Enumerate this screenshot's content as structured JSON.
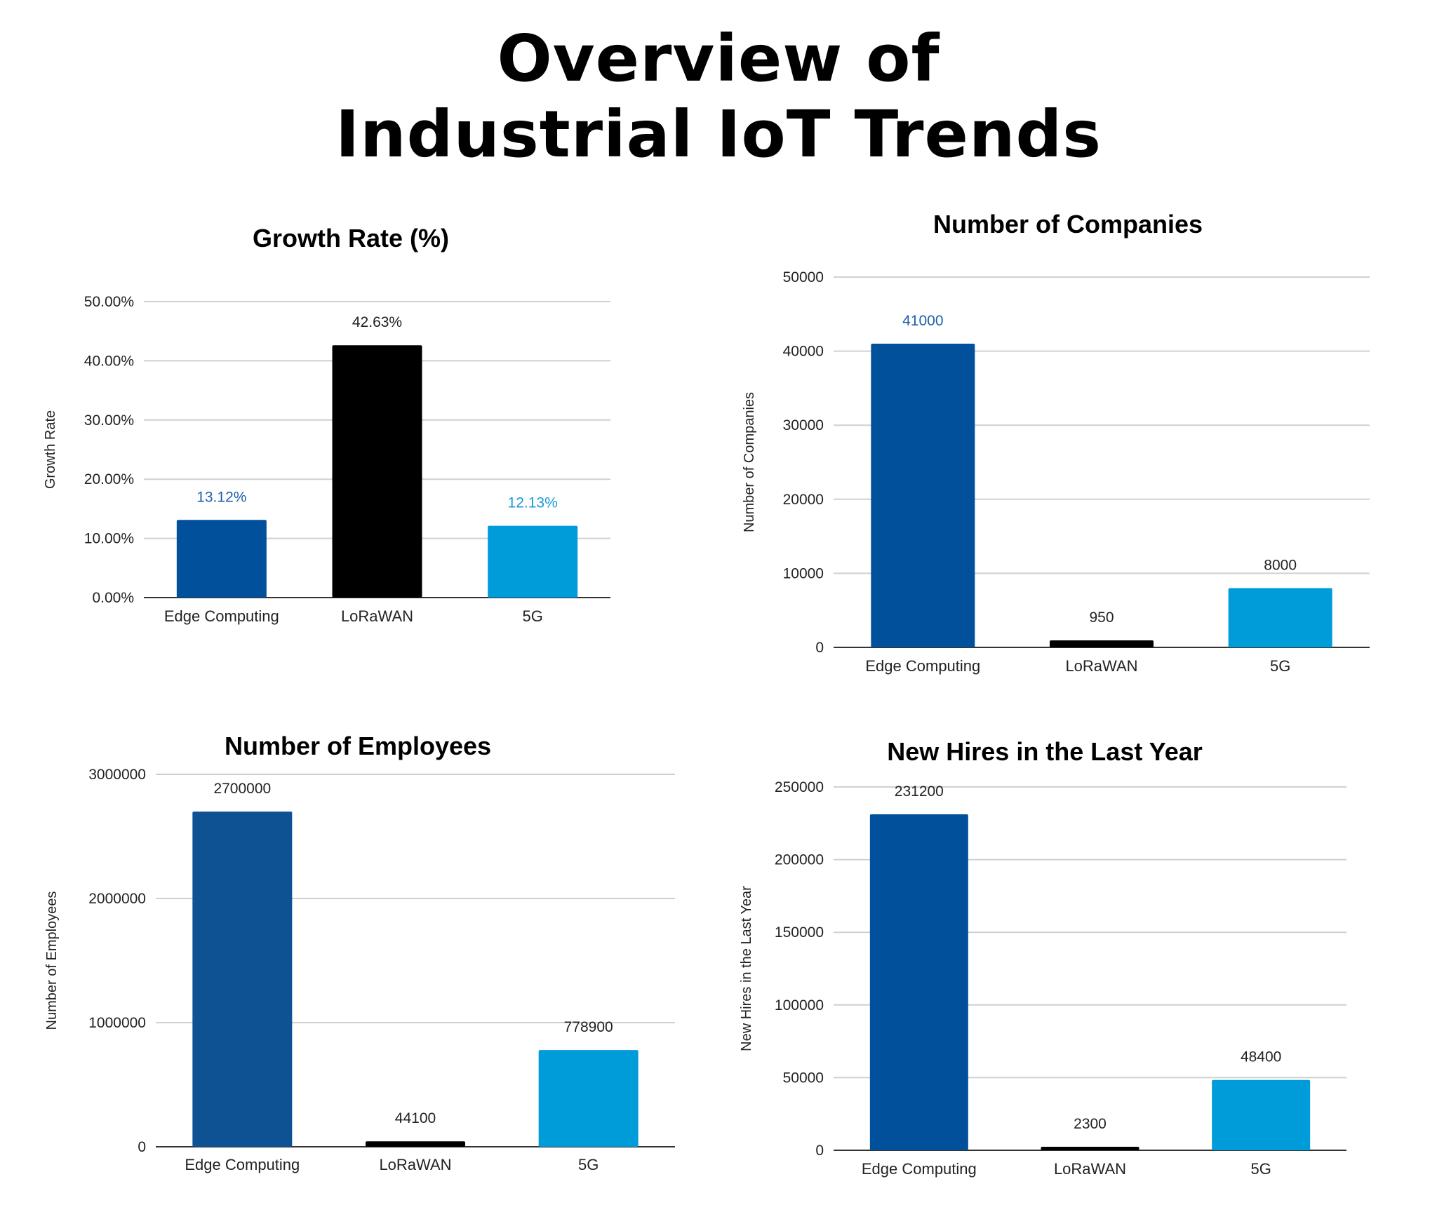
{
  "page": {
    "title_line1": "Overview of",
    "title_line2": "Industrial IoT Trends"
  },
  "colors": {
    "edge_computing": "#00509B",
    "lorawan": "#000000",
    "five_g": "#009CD9",
    "grid": "#D0D0D0",
    "axis": "#333333",
    "label_dark": "#222222"
  },
  "chart_data": [
    {
      "id": "growth",
      "type": "bar",
      "title": "Growth Rate (%)",
      "xlabel": "",
      "ylabel": "Growth Rate",
      "categories": [
        "Edge Computing",
        "LoRaWAN",
        "5G"
      ],
      "values": [
        13.12,
        42.63,
        12.13
      ],
      "data_labels": [
        "13.12%",
        "42.63%",
        "12.13%"
      ],
      "data_label_colors": [
        "#1F5FAA",
        "#222222",
        "#1A9BD7"
      ],
      "bar_colors": [
        "#00509B",
        "#000000",
        "#009CD9"
      ],
      "ylim": [
        0,
        50
      ],
      "yticks": [
        0,
        10,
        20,
        30,
        40,
        50
      ],
      "ytick_labels": [
        "0.00%",
        "10.00%",
        "20.00%",
        "30.00%",
        "40.00%",
        "50.00%"
      ],
      "grid": true
    },
    {
      "id": "companies",
      "type": "bar",
      "title": "Number of Companies",
      "xlabel": "",
      "ylabel": "Number of Companies",
      "categories": [
        "Edge Computing",
        "LoRaWAN",
        "5G"
      ],
      "values": [
        41000,
        950,
        8000
      ],
      "data_labels": [
        "41000",
        "950",
        "8000"
      ],
      "data_label_colors": [
        "#1F5FAA",
        "#222222",
        "#222222"
      ],
      "bar_colors": [
        "#00509B",
        "#000000",
        "#009CD9"
      ],
      "ylim": [
        0,
        50000
      ],
      "yticks": [
        0,
        10000,
        20000,
        30000,
        40000,
        50000
      ],
      "ytick_labels": [
        "0",
        "10000",
        "20000",
        "30000",
        "40000",
        "50000"
      ],
      "grid": true
    },
    {
      "id": "employees",
      "type": "bar",
      "title": "Number of Employees",
      "xlabel": "",
      "ylabel": "Number of Employees",
      "categories": [
        "Edge Computing",
        "LoRaWAN",
        "5G"
      ],
      "values": [
        2700000,
        44100,
        778900
      ],
      "data_labels": [
        "2700000",
        "44100",
        "778900"
      ],
      "data_label_colors": [
        "#222222",
        "#222222",
        "#222222"
      ],
      "bar_colors": [
        "#0F5294",
        "#000000",
        "#009CD9"
      ],
      "ylim": [
        0,
        3000000
      ],
      "yticks": [
        0,
        1000000,
        2000000,
        3000000
      ],
      "ytick_labels": [
        "0",
        "1000000",
        "2000000",
        "3000000"
      ],
      "grid": true
    },
    {
      "id": "hires",
      "type": "bar",
      "title": "New Hires in the Last Year",
      "xlabel": "",
      "ylabel": "New Hires in the Last Year",
      "categories": [
        "Edge Computing",
        "LoRaWAN",
        "5G"
      ],
      "values": [
        231200,
        2300,
        48400
      ],
      "data_labels": [
        "231200",
        "2300",
        "48400"
      ],
      "data_label_colors": [
        "#222222",
        "#222222",
        "#222222"
      ],
      "bar_colors": [
        "#00509B",
        "#000000",
        "#009CD9"
      ],
      "ylim": [
        0,
        250000
      ],
      "yticks": [
        0,
        50000,
        100000,
        150000,
        200000,
        250000
      ],
      "ytick_labels": [
        "0",
        "50000",
        "100000",
        "150000",
        "200000",
        "250000"
      ],
      "grid": true
    }
  ]
}
